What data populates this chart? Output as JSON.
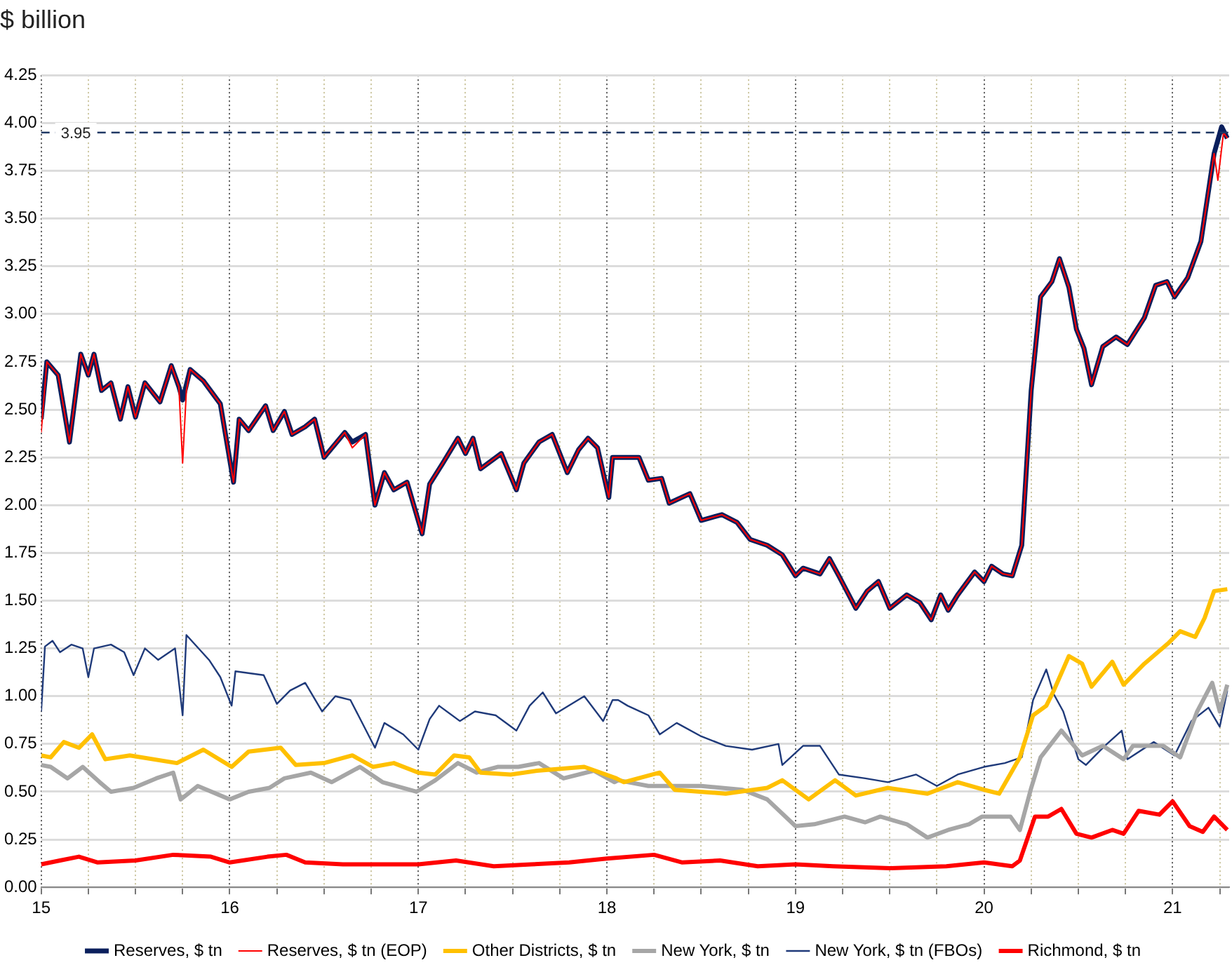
{
  "chart_data": {
    "type": "line",
    "ylabel": "$ billion",
    "xlim": [
      15,
      21.3
    ],
    "xticks": [
      15,
      {
        "value": 15.25,
        "label": null
      },
      {
        "value": 15.5,
        "label": null
      },
      {
        "value": 15.75,
        "label": null
      },
      16,
      {
        "value": 16.25,
        "label": null
      },
      {
        "value": 16.5,
        "label": null
      },
      {
        "value": 16.75,
        "label": null
      },
      17,
      {
        "value": 17.25,
        "label": null
      },
      {
        "value": 17.5,
        "label": null
      },
      {
        "value": 17.75,
        "label": null
      },
      18,
      {
        "value": 18.25,
        "label": null
      },
      {
        "value": 18.5,
        "label": null
      },
      {
        "value": 18.75,
        "label": null
      },
      19,
      {
        "value": 19.25,
        "label": null
      },
      {
        "value": 19.5,
        "label": null
      },
      {
        "value": 19.75,
        "label": null
      },
      20,
      {
        "value": 20.25,
        "label": null
      },
      {
        "value": 20.5,
        "label": null
      },
      {
        "value": 20.75,
        "label": null
      },
      21,
      {
        "value": 21.25,
        "label": null
      }
    ],
    "ylim": [
      0,
      4.25
    ],
    "yticks": [
      {
        "value": 0,
        "label": "0.00"
      },
      0.25,
      {
        "value": 0.5,
        "label": "0.50"
      },
      0.75,
      {
        "value": 1,
        "label": "1.00"
      },
      1.25,
      {
        "value": 1.5,
        "label": "1.50"
      },
      1.75,
      {
        "value": 2,
        "label": "2.00"
      },
      2.25,
      {
        "value": 2.5,
        "label": "2.50"
      },
      2.75,
      {
        "value": 3,
        "label": "3.00"
      },
      3.25,
      {
        "value": 3.5,
        "label": "3.50"
      },
      3.75,
      {
        "value": 4,
        "label": "4.00"
      },
      4.25
    ],
    "grid": true,
    "legend": "bottom",
    "marker": "none",
    "line_style": "solid",
    "ref_lines": [
      {
        "axis": "y",
        "value": 3.95,
        "label": "3.95",
        "color": "#1f3864",
        "line_style": "dashed"
      }
    ],
    "series": [
      {
        "name": "Reserves, $ tn",
        "color": "#0a1f5c",
        "x": [
          15.0,
          15.03,
          15.09,
          15.15,
          15.21,
          15.25,
          15.28,
          15.32,
          15.37,
          15.42,
          15.46,
          15.5,
          15.55,
          15.63,
          15.69,
          15.73,
          15.75,
          15.79,
          15.86,
          15.95,
          16.02,
          16.05,
          16.1,
          16.19,
          16.23,
          16.29,
          16.33,
          16.4,
          16.45,
          16.5,
          16.61,
          16.65,
          16.72,
          16.77,
          16.82,
          16.87,
          16.94,
          17.02,
          17.06,
          17.13,
          17.21,
          17.25,
          17.29,
          17.33,
          17.44,
          17.52,
          17.56,
          17.64,
          17.71,
          17.79,
          17.85,
          17.9,
          17.95,
          18.01,
          18.03,
          18.11,
          18.17,
          18.22,
          18.29,
          18.33,
          18.44,
          18.5,
          18.61,
          18.69,
          18.76,
          18.85,
          18.93,
          19.0,
          19.04,
          19.13,
          19.18,
          19.23,
          19.32,
          19.38,
          19.44,
          19.5,
          19.59,
          19.66,
          19.72,
          19.77,
          19.81,
          19.86,
          19.95,
          20.0,
          20.04,
          20.1,
          20.15,
          20.2,
          20.25,
          20.3,
          20.36,
          20.4,
          20.45,
          20.49,
          20.53,
          20.57,
          20.63,
          20.7,
          20.76,
          20.85,
          20.91,
          20.97,
          21.01,
          21.08,
          21.15,
          21.22,
          21.26,
          21.29
        ],
        "values": [
          2.45,
          2.75,
          2.68,
          2.33,
          2.79,
          2.68,
          2.79,
          2.6,
          2.64,
          2.45,
          2.62,
          2.46,
          2.64,
          2.54,
          2.73,
          2.62,
          2.55,
          2.71,
          2.65,
          2.53,
          2.12,
          2.45,
          2.39,
          2.52,
          2.39,
          2.49,
          2.37,
          2.41,
          2.45,
          2.25,
          2.38,
          2.33,
          2.37,
          2.0,
          2.17,
          2.08,
          2.12,
          1.85,
          2.11,
          2.22,
          2.35,
          2.27,
          2.35,
          2.19,
          2.27,
          2.08,
          2.22,
          2.33,
          2.37,
          2.17,
          2.29,
          2.35,
          2.3,
          2.04,
          2.25,
          2.25,
          2.25,
          2.13,
          2.14,
          2.01,
          2.06,
          1.92,
          1.95,
          1.91,
          1.82,
          1.79,
          1.74,
          1.63,
          1.67,
          1.64,
          1.72,
          1.63,
          1.46,
          1.55,
          1.6,
          1.46,
          1.53,
          1.49,
          1.4,
          1.53,
          1.45,
          1.53,
          1.65,
          1.6,
          1.68,
          1.64,
          1.63,
          1.79,
          2.6,
          3.09,
          3.17,
          3.29,
          3.14,
          2.92,
          2.82,
          2.63,
          2.83,
          2.88,
          2.84,
          2.98,
          3.15,
          3.17,
          3.09,
          3.19,
          3.38,
          3.84,
          3.98,
          3.92
        ]
      },
      {
        "name": "Reserves, $ tn (EOP)",
        "color": "#ff0000",
        "x": [
          15.0,
          15.03,
          15.09,
          15.15,
          15.21,
          15.25,
          15.28,
          15.32,
          15.37,
          15.42,
          15.46,
          15.5,
          15.55,
          15.63,
          15.69,
          15.73,
          15.75,
          15.77,
          15.79,
          15.86,
          15.95,
          16.02,
          16.05,
          16.1,
          16.19,
          16.23,
          16.29,
          16.33,
          16.4,
          16.45,
          16.5,
          16.61,
          16.65,
          16.72,
          16.77,
          16.82,
          16.87,
          16.94,
          17.02,
          17.06,
          17.13,
          17.21,
          17.25,
          17.29,
          17.33,
          17.44,
          17.52,
          17.56,
          17.64,
          17.71,
          17.79,
          17.85,
          17.9,
          17.95,
          18.01,
          18.03,
          18.11,
          18.17,
          18.22,
          18.29,
          18.33,
          18.44,
          18.5,
          18.61,
          18.69,
          18.76,
          18.85,
          18.93,
          19.0,
          19.04,
          19.13,
          19.18,
          19.23,
          19.32,
          19.38,
          19.44,
          19.5,
          19.59,
          19.66,
          19.72,
          19.77,
          19.81,
          19.86,
          19.95,
          20.0,
          20.04,
          20.1,
          20.15,
          20.2,
          20.25,
          20.3,
          20.36,
          20.4,
          20.45,
          20.49,
          20.53,
          20.57,
          20.63,
          20.7,
          20.76,
          20.85,
          20.91,
          20.97,
          21.01,
          21.08,
          21.15,
          21.22,
          21.24,
          21.27,
          21.29
        ],
        "values": [
          2.38,
          2.75,
          2.68,
          2.33,
          2.79,
          2.68,
          2.79,
          2.6,
          2.64,
          2.45,
          2.62,
          2.46,
          2.64,
          2.54,
          2.73,
          2.62,
          2.22,
          2.6,
          2.71,
          2.65,
          2.53,
          2.12,
          2.45,
          2.39,
          2.52,
          2.39,
          2.49,
          2.37,
          2.41,
          2.45,
          2.25,
          2.38,
          2.3,
          2.37,
          2.0,
          2.17,
          2.08,
          2.12,
          1.85,
          2.11,
          2.22,
          2.35,
          2.27,
          2.35,
          2.19,
          2.27,
          2.08,
          2.22,
          2.33,
          2.37,
          2.17,
          2.29,
          2.35,
          2.3,
          2.04,
          2.25,
          2.25,
          2.25,
          2.13,
          2.14,
          2.01,
          2.06,
          1.92,
          1.95,
          1.91,
          1.82,
          1.79,
          1.74,
          1.63,
          1.67,
          1.64,
          1.72,
          1.63,
          1.46,
          1.55,
          1.6,
          1.46,
          1.53,
          1.49,
          1.4,
          1.53,
          1.45,
          1.53,
          1.65,
          1.6,
          1.68,
          1.64,
          1.63,
          1.79,
          2.6,
          3.09,
          3.17,
          3.29,
          3.14,
          2.92,
          2.82,
          2.63,
          2.83,
          2.88,
          2.84,
          2.98,
          3.15,
          3.17,
          3.09,
          3.19,
          3.38,
          3.84,
          3.7,
          3.95,
          3.92
        ]
      },
      {
        "name": "Other Districts, $ tn",
        "color": "#ffc000",
        "x": [
          15.0,
          15.05,
          15.12,
          15.2,
          15.27,
          15.34,
          15.47,
          15.72,
          15.86,
          16.01,
          16.1,
          16.27,
          16.35,
          16.5,
          16.65,
          16.76,
          16.87,
          17.0,
          17.09,
          17.19,
          17.27,
          17.33,
          17.49,
          17.63,
          17.88,
          18.05,
          18.09,
          18.28,
          18.36,
          18.63,
          18.85,
          18.93,
          19.07,
          19.21,
          19.32,
          19.49,
          19.7,
          19.86,
          20.0,
          20.08,
          20.19,
          20.26,
          20.33,
          20.37,
          20.45,
          20.52,
          20.57,
          20.68,
          20.74,
          20.85,
          20.98,
          21.04,
          21.12,
          21.17,
          21.22,
          21.29
        ],
        "values": [
          0.69,
          0.68,
          0.76,
          0.73,
          0.8,
          0.67,
          0.69,
          0.65,
          0.72,
          0.63,
          0.71,
          0.73,
          0.64,
          0.65,
          0.69,
          0.63,
          0.65,
          0.6,
          0.59,
          0.69,
          0.68,
          0.6,
          0.59,
          0.61,
          0.63,
          0.57,
          0.55,
          0.6,
          0.51,
          0.49,
          0.52,
          0.56,
          0.46,
          0.56,
          0.48,
          0.52,
          0.49,
          0.55,
          0.51,
          0.49,
          0.68,
          0.9,
          0.95,
          1.03,
          1.21,
          1.17,
          1.05,
          1.18,
          1.06,
          1.17,
          1.28,
          1.34,
          1.31,
          1.41,
          1.55,
          1.56
        ]
      },
      {
        "name": "New York, $ tn",
        "color": "#a6a6a6",
        "x": [
          15.0,
          15.05,
          15.14,
          15.22,
          15.31,
          15.37,
          15.49,
          15.61,
          15.7,
          15.74,
          15.83,
          16.0,
          16.1,
          16.21,
          16.29,
          16.43,
          16.54,
          16.69,
          16.81,
          16.99,
          17.09,
          17.21,
          17.31,
          17.42,
          17.53,
          17.64,
          17.77,
          17.93,
          18.04,
          18.06,
          18.22,
          18.5,
          18.72,
          18.85,
          19.0,
          19.1,
          19.26,
          19.37,
          19.45,
          19.59,
          19.7,
          19.81,
          19.92,
          19.99,
          20.14,
          20.19,
          20.25,
          20.3,
          20.41,
          20.52,
          20.63,
          20.74,
          20.79,
          20.95,
          21.04,
          21.13,
          21.21,
          21.25,
          21.29
        ],
        "values": [
          0.64,
          0.63,
          0.57,
          0.63,
          0.55,
          0.5,
          0.52,
          0.57,
          0.6,
          0.46,
          0.53,
          0.46,
          0.5,
          0.52,
          0.57,
          0.6,
          0.55,
          0.63,
          0.55,
          0.5,
          0.56,
          0.65,
          0.6,
          0.63,
          0.63,
          0.65,
          0.57,
          0.61,
          0.55,
          0.56,
          0.53,
          0.53,
          0.51,
          0.46,
          0.32,
          0.33,
          0.37,
          0.34,
          0.37,
          0.33,
          0.26,
          0.3,
          0.33,
          0.37,
          0.37,
          0.3,
          0.52,
          0.68,
          0.82,
          0.69,
          0.74,
          0.67,
          0.74,
          0.74,
          0.68,
          0.92,
          1.07,
          0.92,
          1.06
        ]
      },
      {
        "name": "New York, $ tn (FBOs)",
        "color": "#1f3a7a",
        "x": [
          15.0,
          15.02,
          15.06,
          15.1,
          15.16,
          15.22,
          15.25,
          15.28,
          15.37,
          15.44,
          15.49,
          15.55,
          15.62,
          15.71,
          15.75,
          15.77,
          15.89,
          15.95,
          16.01,
          16.03,
          16.18,
          16.25,
          16.32,
          16.4,
          16.49,
          16.56,
          16.64,
          16.77,
          16.82,
          16.92,
          17.0,
          17.06,
          17.11,
          17.22,
          17.3,
          17.41,
          17.52,
          17.59,
          17.66,
          17.73,
          17.88,
          17.98,
          18.03,
          18.06,
          18.11,
          18.22,
          18.28,
          18.37,
          18.5,
          18.63,
          18.77,
          18.91,
          18.93,
          19.04,
          19.13,
          19.23,
          19.37,
          19.49,
          19.64,
          19.75,
          19.86,
          20.0,
          20.11,
          20.2,
          20.26,
          20.33,
          20.37,
          20.42,
          20.5,
          20.54,
          20.64,
          20.73,
          20.76,
          20.9,
          21.01,
          21.1,
          21.19,
          21.25,
          21.29
        ],
        "values": [
          0.92,
          1.26,
          1.29,
          1.23,
          1.27,
          1.25,
          1.1,
          1.25,
          1.27,
          1.23,
          1.11,
          1.25,
          1.19,
          1.25,
          0.9,
          1.32,
          1.19,
          1.1,
          0.95,
          1.13,
          1.11,
          0.96,
          1.03,
          1.07,
          0.92,
          1.0,
          0.98,
          0.73,
          0.86,
          0.8,
          0.72,
          0.88,
          0.95,
          0.87,
          0.92,
          0.9,
          0.82,
          0.95,
          1.02,
          0.91,
          1.0,
          0.87,
          0.98,
          0.98,
          0.95,
          0.9,
          0.8,
          0.86,
          0.79,
          0.74,
          0.72,
          0.75,
          0.64,
          0.74,
          0.74,
          0.59,
          0.57,
          0.55,
          0.59,
          0.53,
          0.59,
          0.63,
          0.65,
          0.68,
          0.98,
          1.14,
          1.01,
          0.92,
          0.67,
          0.64,
          0.74,
          0.82,
          0.67,
          0.76,
          0.69,
          0.87,
          0.94,
          0.84,
          1.03
        ]
      },
      {
        "name": "Richmond, $ tn",
        "color": "#ff0000",
        "x": [
          15.0,
          15.1,
          15.2,
          15.3,
          15.5,
          15.7,
          15.9,
          16.0,
          16.2,
          16.3,
          16.4,
          16.6,
          16.8,
          17.0,
          17.2,
          17.4,
          17.6,
          17.8,
          18.0,
          18.25,
          18.4,
          18.6,
          18.8,
          19.0,
          19.2,
          19.5,
          19.8,
          20.0,
          20.15,
          20.19,
          20.27,
          20.34,
          20.41,
          20.49,
          20.57,
          20.68,
          20.74,
          20.82,
          20.93,
          21.0,
          21.09,
          21.16,
          21.22,
          21.29
        ],
        "values": [
          0.12,
          0.14,
          0.16,
          0.13,
          0.14,
          0.17,
          0.16,
          0.13,
          0.16,
          0.17,
          0.13,
          0.12,
          0.12,
          0.12,
          0.14,
          0.11,
          0.12,
          0.13,
          0.15,
          0.17,
          0.13,
          0.14,
          0.11,
          0.12,
          0.11,
          0.1,
          0.11,
          0.13,
          0.11,
          0.14,
          0.37,
          0.37,
          0.41,
          0.28,
          0.26,
          0.3,
          0.28,
          0.4,
          0.38,
          0.45,
          0.32,
          0.29,
          0.37,
          0.3
        ]
      }
    ]
  }
}
